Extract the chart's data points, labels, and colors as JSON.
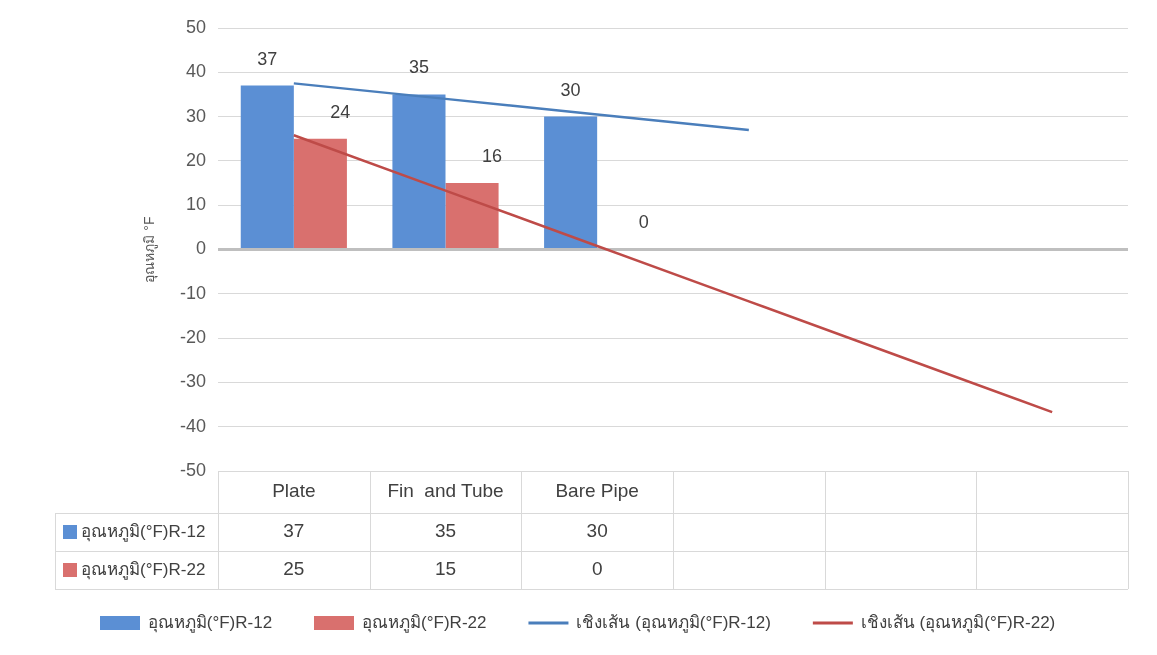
{
  "chart_data": {
    "type": "bar",
    "ylabel": "อุณหภูมิ °F",
    "categories": [
      "Plate",
      "Fin  and Tube",
      "Bare Pipe",
      null,
      null,
      null
    ],
    "ylim": [
      -50,
      50
    ],
    "yticks": [
      -50,
      -40,
      -30,
      -20,
      -10,
      0,
      10,
      20,
      30,
      40,
      50
    ],
    "grid": "y",
    "legend": "bottom",
    "annotations": [
      {
        "text": "24",
        "x": "Plate",
        "y": 25
      },
      {
        "text": "16",
        "x": "Fin  and Tube",
        "y": 15
      },
      {
        "text": "0",
        "x": "Bare Pipe",
        "y": 0
      }
    ],
    "series": [
      {
        "name": "อุณหภูมิ(°F)R-12",
        "color": "#5b8fd4",
        "values": [
          37,
          35,
          30,
          null,
          null,
          null
        ],
        "value_labels": [
          "37",
          "35",
          "30",
          null,
          null,
          null
        ]
      },
      {
        "name": "อุณหภูมิ(°F)R-22",
        "color": "#d9706e",
        "values": [
          25,
          15,
          0,
          null,
          null,
          null
        ],
        "value_labels": [
          "25",
          "15",
          "0",
          null,
          null,
          null
        ]
      },
      {
        "name": "เชิงเส้น (อุณหภูมิ(°F)R-12)",
        "type": "line",
        "color": "#4a7ebb",
        "values": [
          37.5,
          34,
          30.5,
          27,
          null,
          null
        ]
      },
      {
        "name": "เชิงเส้น (อุณหภูมิ(°F)R-22)",
        "type": "line",
        "color": "#be4b48",
        "values": [
          25.8,
          13.3,
          0.8,
          -11.7,
          -24.2,
          -36.7
        ]
      }
    ]
  }
}
